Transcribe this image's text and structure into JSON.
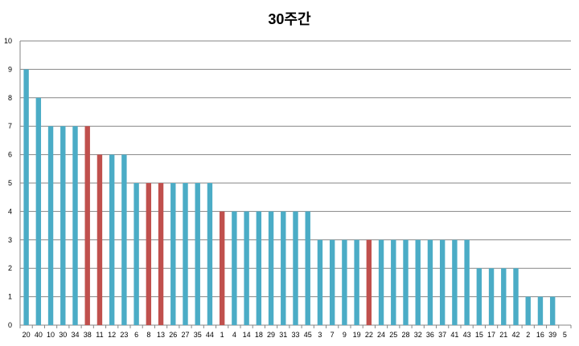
{
  "chart_data": {
    "type": "bar",
    "title": "30주간",
    "xlabel": "",
    "ylabel": "",
    "ylim": [
      0,
      10
    ],
    "yticks": [
      0,
      1,
      2,
      3,
      4,
      5,
      6,
      7,
      8,
      9,
      10
    ],
    "grid": true,
    "legend": "none",
    "categories": [
      "20",
      "40",
      "10",
      "30",
      "34",
      "38",
      "11",
      "12",
      "23",
      "6",
      "8",
      "13",
      "26",
      "27",
      "35",
      "44",
      "1",
      "4",
      "14",
      "18",
      "29",
      "31",
      "33",
      "45",
      "3",
      "7",
      "9",
      "19",
      "22",
      "24",
      "25",
      "28",
      "32",
      "36",
      "37",
      "41",
      "43",
      "15",
      "17",
      "21",
      "42",
      "2",
      "16",
      "39",
      "5"
    ],
    "values": [
      9,
      8,
      7,
      7,
      7,
      7,
      6,
      6,
      6,
      5,
      5,
      5,
      5,
      5,
      5,
      5,
      4,
      4,
      4,
      4,
      4,
      4,
      4,
      4,
      3,
      3,
      3,
      3,
      3,
      3,
      3,
      3,
      3,
      3,
      3,
      3,
      3,
      2,
      2,
      2,
      2,
      1,
      1,
      1,
      0
    ],
    "highlighted": [
      "38",
      "11",
      "8",
      "13",
      "1",
      "22"
    ],
    "colors": {
      "default": "#4bacc6",
      "highlight": "#c0504d",
      "grid": "#868686",
      "axis": "#868686"
    }
  }
}
